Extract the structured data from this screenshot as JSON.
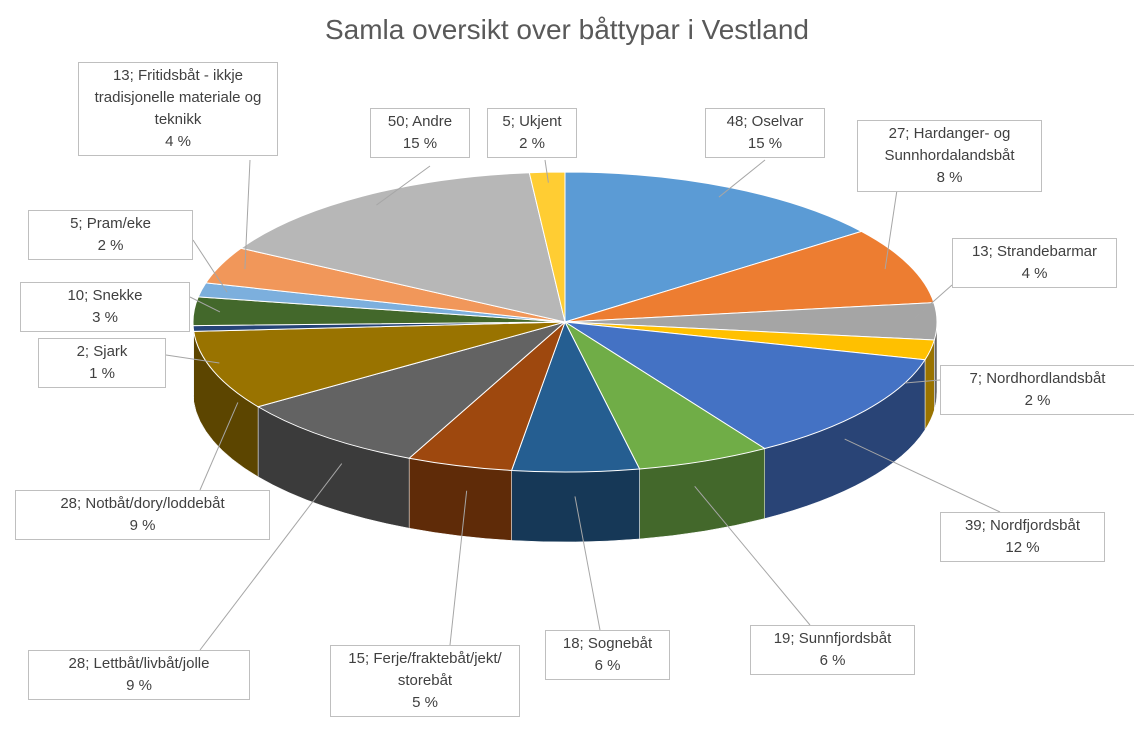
{
  "chart_data": {
    "type": "pie3d",
    "title": "Samla oversikt over båttypar i Vestland",
    "values": [
      48,
      27,
      13,
      7,
      39,
      19,
      18,
      15,
      28,
      28,
      2,
      10,
      5,
      13,
      50,
      5
    ],
    "value_labels": [
      "48; Oselvar",
      "27; Hardanger- og Sunnhordalandsbåt",
      "13; Strandebarmar",
      "7; Nordhordlandsbåt",
      "39; Nordfjordsbåt",
      "19; Sunnfjordsbåt",
      "18; Sognebåt",
      "15; Ferje/fraktebåt/jekt/ storebåt",
      "28; Lettbåt/livbåt/jolle",
      "28; Notbåt/dory/loddebåt",
      "2; Sjark",
      "10; Snekke",
      "5; Pram/eke",
      "13; Fritidsbåt - ikkje tradisjonelle materiale og teknikk",
      "50; Andre",
      "5; Ukjent"
    ],
    "percent_labels": [
      "15 %",
      "8 %",
      "4 %",
      "2 %",
      "12 %",
      "6 %",
      "6 %",
      "5 %",
      "9 %",
      "9 %",
      "1 %",
      "3 %",
      "2 %",
      "4 %",
      "15 %",
      "2 %"
    ],
    "colors": [
      "#5b9bd5",
      "#ed7d31",
      "#a5a5a5",
      "#ffc000",
      "#4472c4",
      "#70ad47",
      "#255e91",
      "#9e480e",
      "#636363",
      "#997300",
      "#264478",
      "#43682b",
      "#7cafdd",
      "#f1975a",
      "#b7b7b7",
      "#ffcd33"
    ]
  }
}
